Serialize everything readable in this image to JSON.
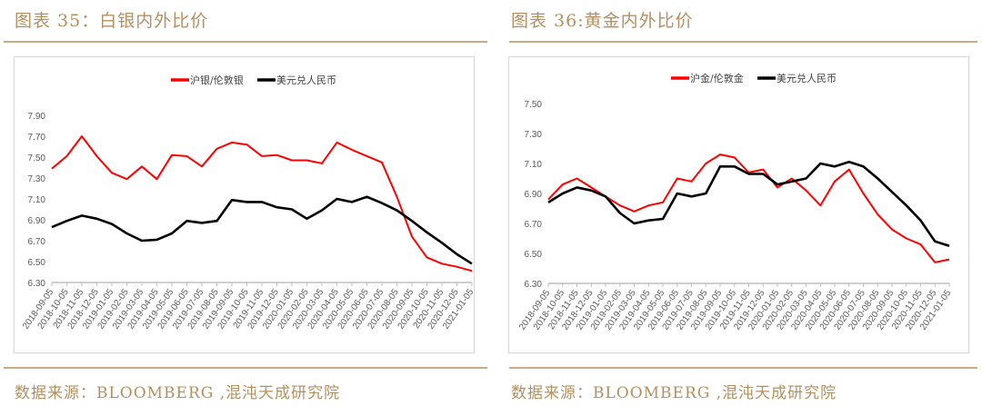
{
  "left": {
    "title": "图表 35：白银内外比价",
    "source": "数据来源：BLOOMBERG ,混沌天成研究院"
  },
  "right": {
    "title": "图表 36:黄金内外比价",
    "source": "数据来源：BLOOMBERG ,混沌天成研究院"
  },
  "colors": {
    "accent": "#b48f5f",
    "series_red": "#ff0000",
    "series_black": "#000000"
  },
  "chart_data": [
    {
      "type": "line",
      "title": "",
      "xlabel": "",
      "ylabel": "",
      "ylim": [
        6.3,
        7.9
      ],
      "yticks": [
        "6.30",
        "6.50",
        "6.70",
        "6.90",
        "7.10",
        "7.30",
        "7.50",
        "7.70",
        "7.90"
      ],
      "x": [
        "2018-09-05",
        "2018-10-05",
        "2018-11-05",
        "2018-12-05",
        "2019-01-05",
        "2019-02-05",
        "2019-03-05",
        "2019-04-05",
        "2019-05-05",
        "2019-06-05",
        "2019-07-05",
        "2019-08-05",
        "2019-09-05",
        "2019-10-05",
        "2019-11-05",
        "2019-12-05",
        "2020-01-05",
        "2020-02-05",
        "2020-03-05",
        "2020-04-05",
        "2020-05-05",
        "2020-06-05",
        "2020-07-05",
        "2020-08-05",
        "2020-09-05",
        "2020-10-05",
        "2020-11-05",
        "2020-12-05",
        "2021-01-05"
      ],
      "legend": "top-center",
      "grid": false,
      "series": [
        {
          "name": "沪银/伦敦银",
          "color": "#ff0000",
          "values": [
            7.39,
            7.51,
            7.7,
            7.51,
            7.35,
            7.29,
            7.41,
            7.29,
            7.52,
            7.51,
            7.41,
            7.58,
            7.64,
            7.62,
            7.51,
            7.52,
            7.47,
            7.47,
            7.44,
            7.64,
            7.57,
            7.51,
            7.45,
            7.12,
            6.74,
            6.54,
            6.48,
            6.45,
            6.41
          ]
        },
        {
          "name": "美元兑人民币",
          "color": "#000000",
          "values": [
            6.83,
            6.89,
            6.94,
            6.91,
            6.86,
            6.77,
            6.7,
            6.71,
            6.77,
            6.89,
            6.87,
            6.89,
            7.09,
            7.07,
            7.07,
            7.02,
            7.0,
            6.91,
            6.99,
            7.1,
            7.07,
            7.12,
            7.06,
            6.99,
            6.89,
            6.78,
            6.68,
            6.57,
            6.48
          ]
        }
      ]
    },
    {
      "type": "line",
      "title": "",
      "xlabel": "",
      "ylabel": "",
      "ylim": [
        6.3,
        7.5
      ],
      "yticks": [
        "6.30",
        "6.50",
        "6.70",
        "6.90",
        "7.10",
        "7.30",
        "7.50"
      ],
      "x": [
        "2018-09-05",
        "2018-10-05",
        "2018-11-05",
        "2018-12-05",
        "2019-01-05",
        "2019-02-05",
        "2019-03-05",
        "2019-04-05",
        "2019-05-05",
        "2019-06-05",
        "2019-07-05",
        "2019-08-05",
        "2019-09-05",
        "2019-10-05",
        "2019-11-05",
        "2019-12-05",
        "2020-01-05",
        "2020-02-05",
        "2020-03-05",
        "2020-04-05",
        "2020-05-05",
        "2020-06-05",
        "2020-07-05",
        "2020-08-05",
        "2020-09-05",
        "2020-10-05",
        "2020-11-05",
        "2020-12-05",
        "2021-01-05"
      ],
      "legend": "top-center",
      "grid": false,
      "series": [
        {
          "name": "沪金/伦敦金",
          "color": "#ff0000",
          "values": [
            6.86,
            6.96,
            7.0,
            6.94,
            6.88,
            6.82,
            6.78,
            6.82,
            6.84,
            7.0,
            6.98,
            7.1,
            7.16,
            7.14,
            7.04,
            7.06,
            6.94,
            7.0,
            6.92,
            6.82,
            6.98,
            7.06,
            6.9,
            6.76,
            6.66,
            6.6,
            6.56,
            6.44,
            6.46
          ]
        },
        {
          "name": "美元兑人民币",
          "color": "#000000",
          "values": [
            6.84,
            6.9,
            6.94,
            6.92,
            6.88,
            6.77,
            6.7,
            6.72,
            6.73,
            6.9,
            6.88,
            6.9,
            7.08,
            7.08,
            7.03,
            7.03,
            6.96,
            6.98,
            7.0,
            7.1,
            7.08,
            7.11,
            7.08,
            7.0,
            6.91,
            6.82,
            6.72,
            6.58,
            6.55
          ]
        }
      ]
    }
  ]
}
